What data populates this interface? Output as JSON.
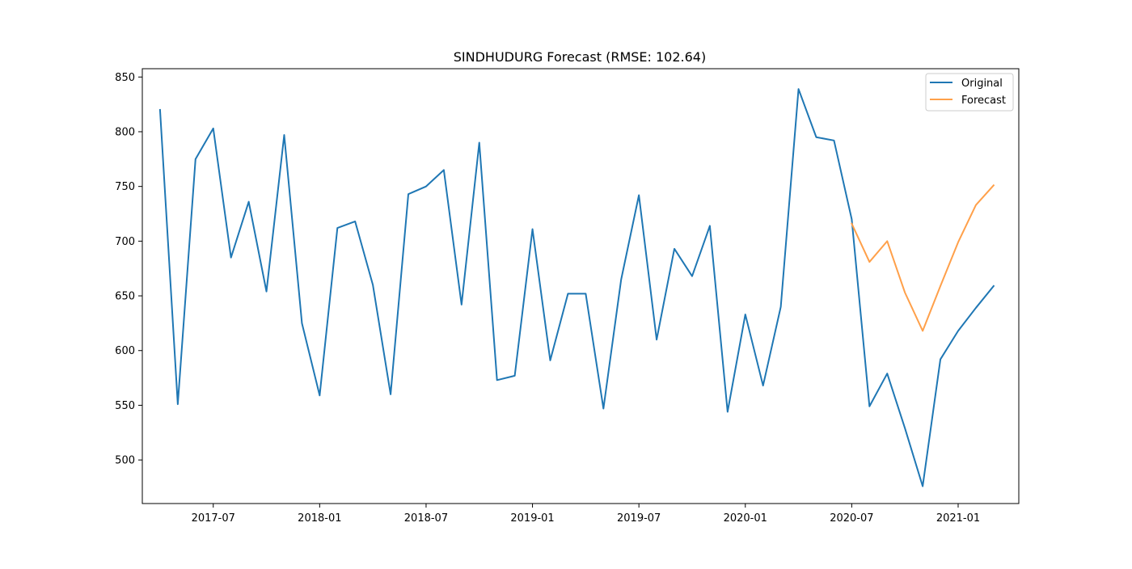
{
  "chart_data": {
    "type": "line",
    "title": "SINDHUDURG Forecast (RMSE: 102.64)",
    "xlabel": "",
    "ylabel": "",
    "x_ticks": [
      "2017-07",
      "2018-01",
      "2018-07",
      "2019-01",
      "2019-07",
      "2020-01",
      "2020-07",
      "2021-01"
    ],
    "y_ticks": [
      500,
      550,
      600,
      650,
      700,
      750,
      800,
      850
    ],
    "grid": false,
    "legend_position": "top-right",
    "series": [
      {
        "name": "Original",
        "color": "#1f77b4",
        "x": [
          "2017-04",
          "2017-05",
          "2017-06",
          "2017-07",
          "2017-08",
          "2017-09",
          "2017-10",
          "2017-11",
          "2017-12",
          "2018-01",
          "2018-02",
          "2018-03",
          "2018-04",
          "2018-05",
          "2018-06",
          "2018-07",
          "2018-08",
          "2018-09",
          "2018-10",
          "2018-11",
          "2018-12",
          "2019-01",
          "2019-02",
          "2019-03",
          "2019-04",
          "2019-05",
          "2019-06",
          "2019-07",
          "2019-08",
          "2019-09",
          "2019-10",
          "2019-11",
          "2019-12",
          "2020-01",
          "2020-02",
          "2020-03",
          "2020-04",
          "2020-05",
          "2020-06",
          "2020-07",
          "2020-08",
          "2020-09",
          "2020-10",
          "2020-11",
          "2020-12",
          "2021-01",
          "2021-02",
          "2021-03"
        ],
        "values": [
          820,
          551,
          775,
          803,
          685,
          736,
          654,
          797,
          625,
          559,
          712,
          718,
          660,
          560,
          743,
          750,
          765,
          642,
          790,
          573,
          577,
          711,
          591,
          652,
          652,
          547,
          665,
          742,
          610,
          693,
          668,
          714,
          544,
          633,
          568,
          640,
          839,
          795,
          792,
          720,
          549,
          579,
          529,
          476,
          592,
          618,
          639,
          659
        ]
      },
      {
        "name": "Forecast",
        "color": "#ffa04a",
        "x": [
          "2020-07",
          "2020-08",
          "2020-09",
          "2020-10",
          "2020-11",
          "2020-12",
          "2021-01",
          "2021-02",
          "2021-03"
        ],
        "values": [
          716,
          681,
          700,
          653,
          618,
          659,
          699,
          733,
          751
        ]
      }
    ]
  }
}
